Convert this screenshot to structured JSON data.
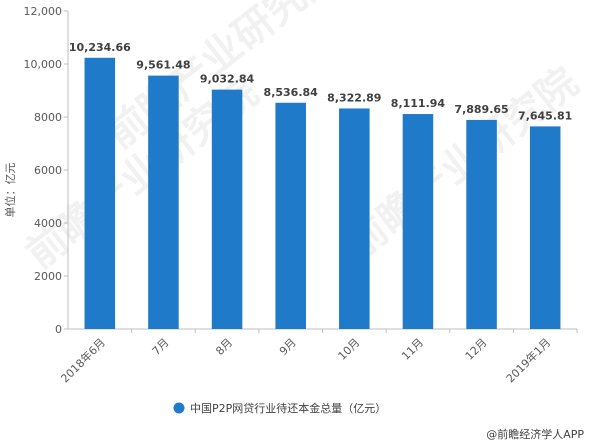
{
  "chart_data": {
    "type": "bar",
    "categories": [
      "2018年6月",
      "7月",
      "8月",
      "9月",
      "10月",
      "11月",
      "12月",
      "2019年1月"
    ],
    "series": [
      {
        "name": "中国P2P网贷行业待还本金总量（亿元）",
        "color": "#1f7bc9",
        "values": [
          10234.66,
          9561.48,
          9032.84,
          8536.84,
          8322.89,
          8111.94,
          7889.65,
          7645.81
        ]
      }
    ],
    "data_labels": [
      "10,234.66",
      "9,561.48",
      "9,032.84",
      "8,536.84",
      "8,322.89",
      "8,111.94",
      "7,889.65",
      "7,645.81"
    ],
    "ylabel": "单位：亿元",
    "ylim": [
      0,
      12000
    ],
    "yticks": [
      0,
      2000,
      4000,
      6000,
      8000,
      10000,
      12000
    ],
    "ytick_labels": [
      "0",
      "2000",
      "4000",
      "6000",
      "8000",
      "10,000",
      "12,000"
    ],
    "grid": false,
    "legend_position": "bottom"
  },
  "footer": {
    "source": "@前瞻经济学人APP"
  },
  "watermark": "前瞻产业研究院"
}
